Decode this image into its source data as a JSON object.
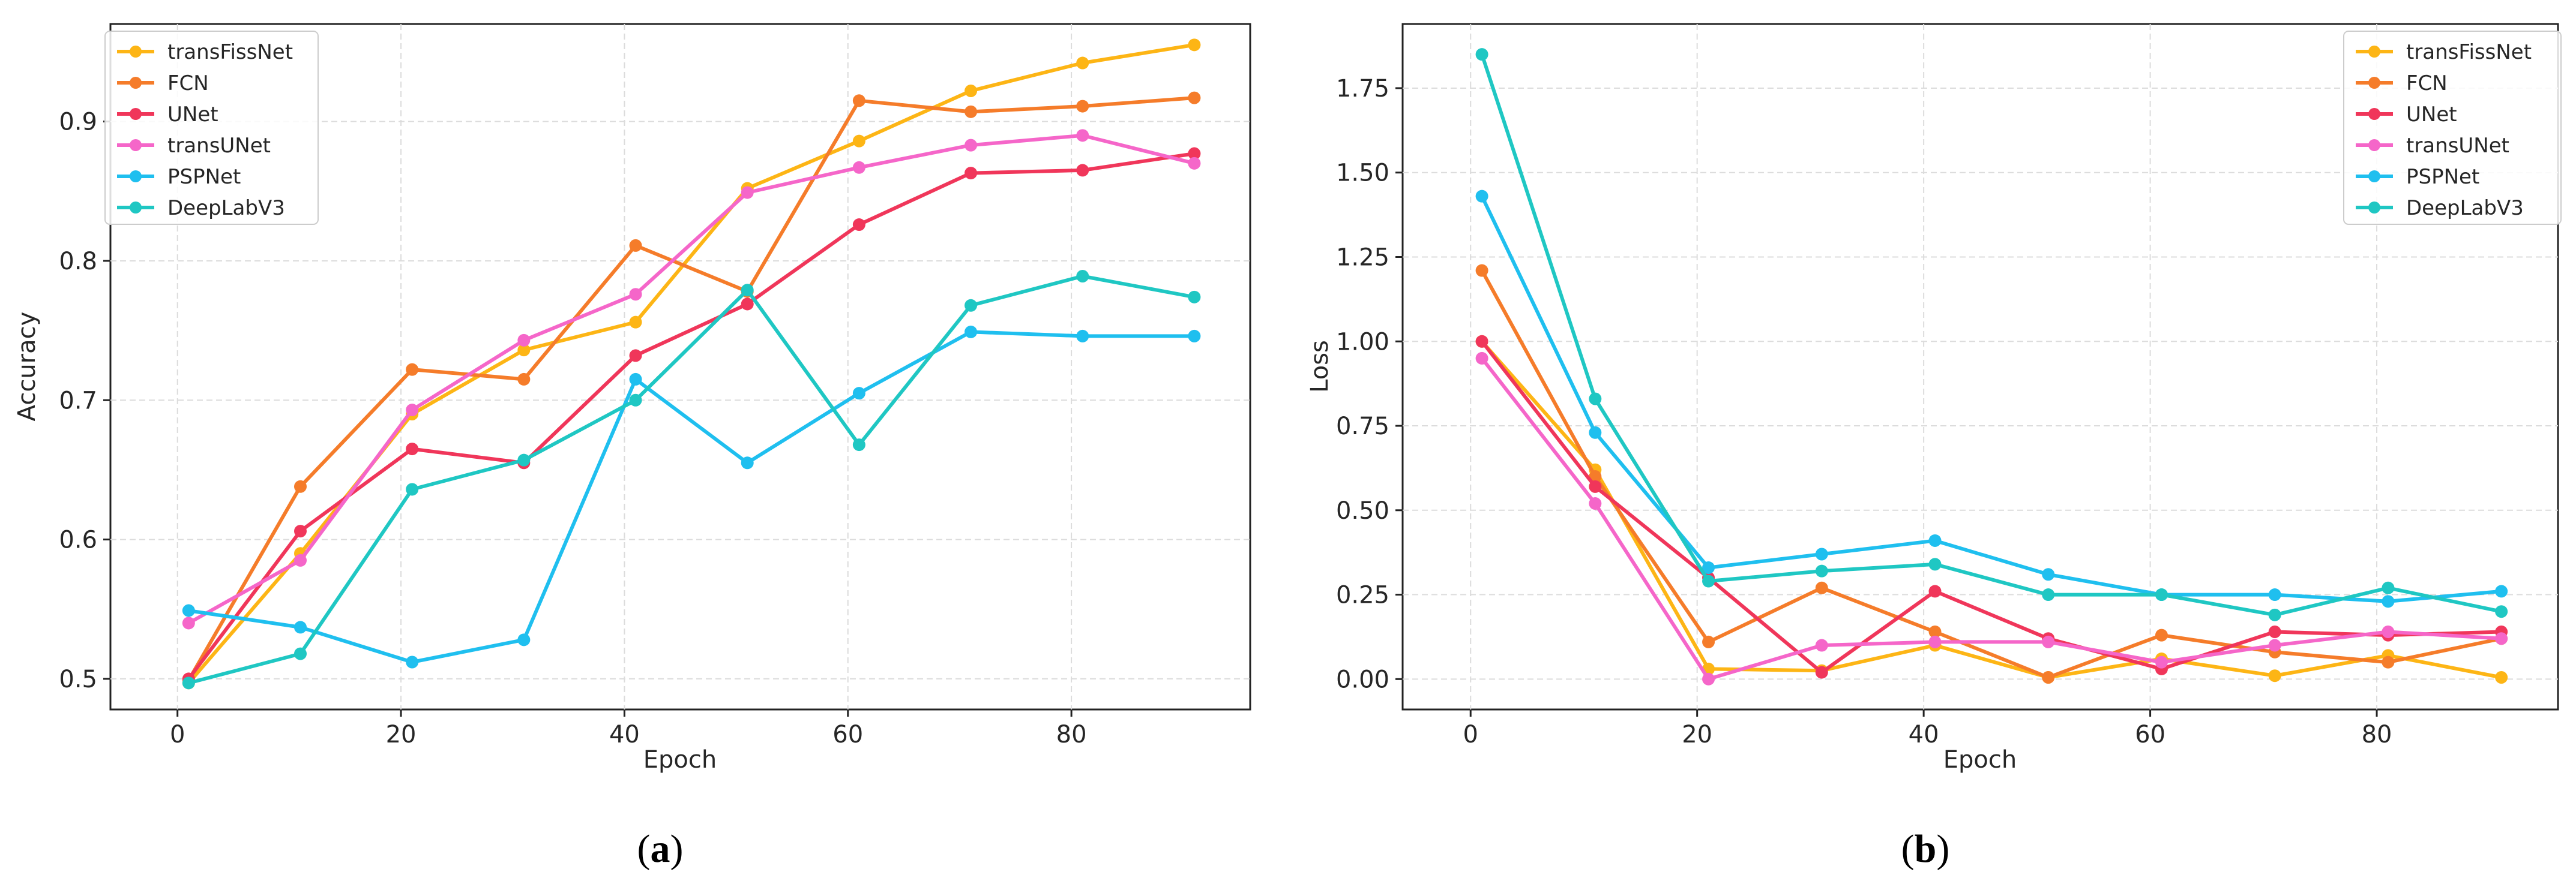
{
  "colors": {
    "transFissNet": "#fdb515",
    "FCN": "#f57c2a",
    "UNet": "#f0365a",
    "transUNet": "#f566c9",
    "PSPNet": "#1fbfef",
    "DeepLabV3": "#1fc7c3"
  },
  "chart_data": [
    {
      "type": "line",
      "panel_label": "a",
      "xlabel": "Epoch",
      "ylabel": "Accuracy",
      "xlim": [
        -6,
        96
      ],
      "ylim": [
        0.478,
        0.97
      ],
      "xticks": [
        0,
        20,
        40,
        60,
        80
      ],
      "yticks": [
        0.5,
        0.6,
        0.7,
        0.8,
        0.9
      ],
      "ytick_labels": [
        "0.5",
        "0.6",
        "0.7",
        "0.8",
        "0.9"
      ],
      "grid": true,
      "legend_position": "top-left",
      "x": [
        1,
        11,
        21,
        31,
        41,
        51,
        61,
        71,
        81,
        91
      ],
      "series": [
        {
          "name": "transFissNet",
          "values": [
            0.497,
            0.59,
            0.69,
            0.736,
            0.756,
            0.852,
            0.886,
            0.922,
            0.942,
            0.955
          ]
        },
        {
          "name": "FCN",
          "values": [
            0.499,
            0.638,
            0.722,
            0.715,
            0.811,
            0.778,
            0.915,
            0.907,
            0.911,
            0.917
          ]
        },
        {
          "name": "UNet",
          "values": [
            0.5,
            0.606,
            0.665,
            0.655,
            0.732,
            0.769,
            0.826,
            0.863,
            0.865,
            0.877
          ]
        },
        {
          "name": "transUNet",
          "values": [
            0.54,
            0.585,
            0.693,
            0.743,
            0.776,
            0.849,
            0.867,
            0.883,
            0.89,
            0.87
          ]
        },
        {
          "name": "PSPNet",
          "values": [
            0.549,
            0.537,
            0.512,
            0.528,
            0.715,
            0.655,
            0.705,
            0.749,
            0.746,
            0.746
          ]
        },
        {
          "name": "DeepLabV3",
          "values": [
            0.497,
            0.518,
            0.636,
            0.657,
            0.7,
            0.779,
            0.668,
            0.768,
            0.789,
            0.774
          ]
        }
      ]
    },
    {
      "type": "line",
      "panel_label": "b",
      "xlabel": "Epoch",
      "ylabel": "Loss",
      "xlim": [
        -6,
        96
      ],
      "ylim": [
        -0.09,
        1.94
      ],
      "xticks": [
        0,
        20,
        40,
        60,
        80
      ],
      "yticks": [
        0.0,
        0.25,
        0.5,
        0.75,
        1.0,
        1.25,
        1.5,
        1.75
      ],
      "ytick_labels": [
        "0.00",
        "0.25",
        "0.50",
        "0.75",
        "1.00",
        "1.25",
        "1.50",
        "1.75"
      ],
      "grid": true,
      "legend_position": "top-right",
      "x": [
        1,
        11,
        21,
        31,
        41,
        51,
        61,
        71,
        81,
        91
      ],
      "series": [
        {
          "name": "transFissNet",
          "values": [
            1.0,
            0.62,
            0.03,
            0.025,
            0.1,
            0.005,
            0.06,
            0.01,
            0.07,
            0.005
          ]
        },
        {
          "name": "FCN",
          "values": [
            1.21,
            0.6,
            0.11,
            0.27,
            0.14,
            0.005,
            0.13,
            0.08,
            0.05,
            0.12
          ]
        },
        {
          "name": "UNet",
          "values": [
            1.0,
            0.57,
            0.3,
            0.02,
            0.26,
            0.12,
            0.03,
            0.14,
            0.13,
            0.14
          ]
        },
        {
          "name": "transUNet",
          "values": [
            0.95,
            0.52,
            0.0,
            0.1,
            0.11,
            0.11,
            0.05,
            0.1,
            0.14,
            0.12
          ]
        },
        {
          "name": "PSPNet",
          "values": [
            1.43,
            0.73,
            0.33,
            0.37,
            0.41,
            0.31,
            0.25,
            0.25,
            0.23,
            0.26
          ]
        },
        {
          "name": "DeepLabV3",
          "values": [
            1.85,
            0.83,
            0.29,
            0.32,
            0.34,
            0.25,
            0.25,
            0.19,
            0.27,
            0.2
          ]
        }
      ]
    }
  ]
}
